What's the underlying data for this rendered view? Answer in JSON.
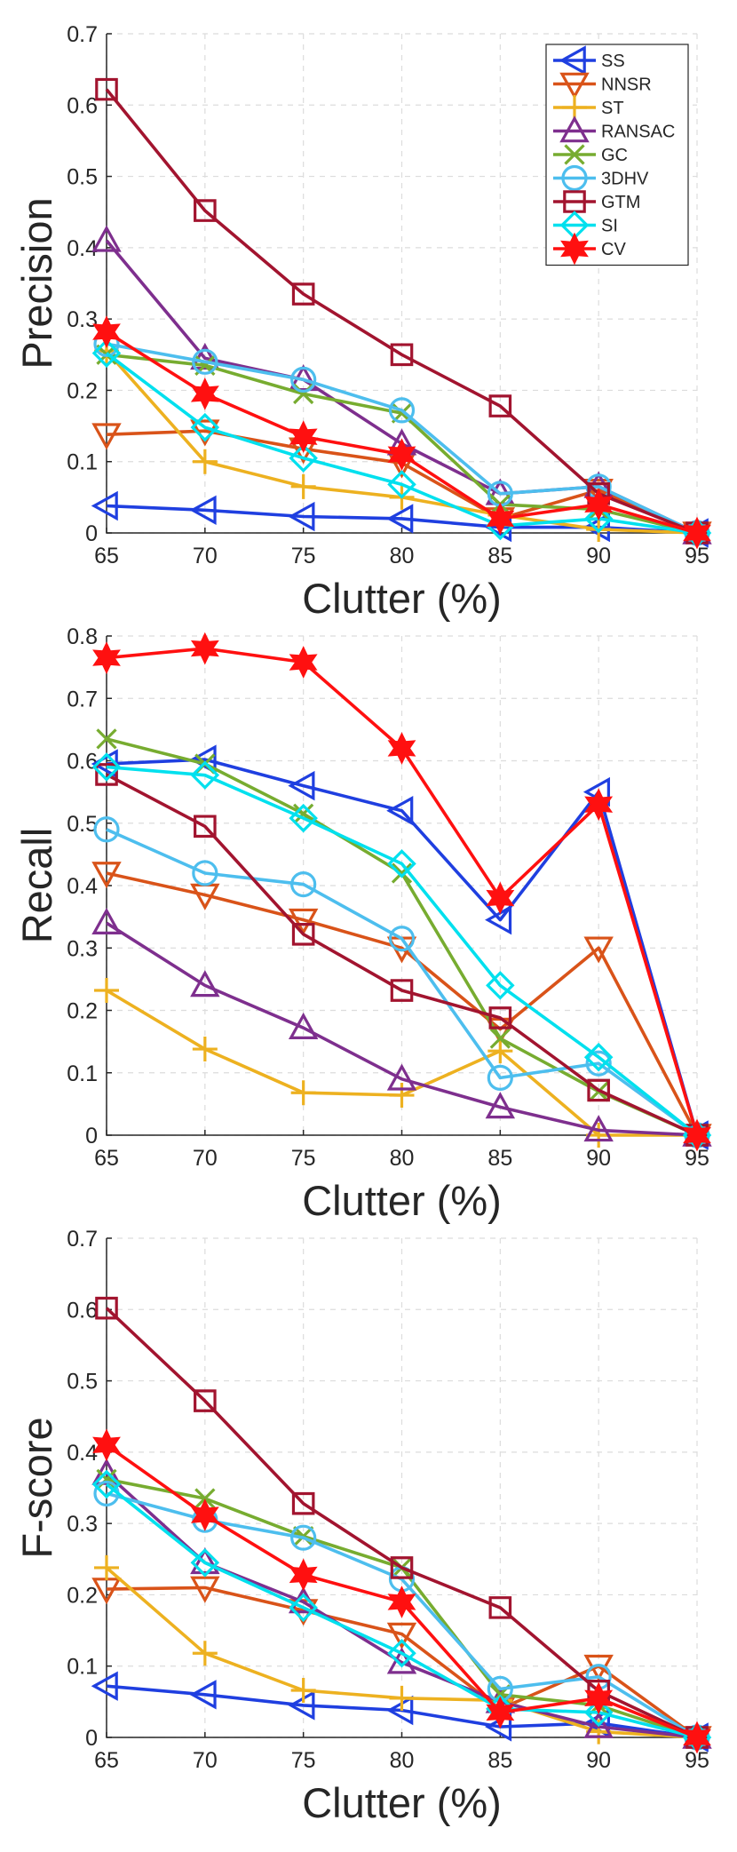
{
  "chart_data": [
    {
      "type": "line",
      "ylabel": "Precision",
      "xlabel": "Clutter (%)",
      "x": [
        65,
        70,
        75,
        80,
        85,
        90,
        95
      ],
      "xlim": [
        65,
        95
      ],
      "ylim": [
        0,
        0.7
      ],
      "xticks": [
        "65",
        "70",
        "75",
        "80",
        "85",
        "90",
        "95"
      ],
      "yticks": [
        "0",
        "0.1",
        "0.2",
        "0.3",
        "0.4",
        "0.5",
        "0.6",
        "0.7"
      ],
      "grid": true,
      "legend_position": "top-right",
      "series": [
        {
          "name": "SS",
          "values": [
            0.038,
            0.032,
            0.023,
            0.02,
            0.008,
            0.008,
            0.0
          ]
        },
        {
          "name": "NNSR",
          "values": [
            0.138,
            0.143,
            0.118,
            0.098,
            0.02,
            0.06,
            0.0
          ]
        },
        {
          "name": "ST",
          "values": [
            0.255,
            0.1,
            0.065,
            0.05,
            0.025,
            0.005,
            0.0
          ]
        },
        {
          "name": "RANSAC",
          "values": [
            0.41,
            0.245,
            0.215,
            0.125,
            0.055,
            0.065,
            0.0
          ]
        },
        {
          "name": "GC",
          "values": [
            0.25,
            0.235,
            0.195,
            0.168,
            0.04,
            0.033,
            0.0
          ]
        },
        {
          "name": "3DHV",
          "values": [
            0.265,
            0.24,
            0.215,
            0.172,
            0.055,
            0.065,
            0.0
          ]
        },
        {
          "name": "GTM",
          "values": [
            0.622,
            0.452,
            0.335,
            0.25,
            0.178,
            0.055,
            0.0
          ]
        },
        {
          "name": "SI",
          "values": [
            0.252,
            0.148,
            0.105,
            0.068,
            0.01,
            0.02,
            0.0
          ]
        },
        {
          "name": "CV",
          "values": [
            0.282,
            0.195,
            0.135,
            0.11,
            0.02,
            0.04,
            0.0
          ]
        }
      ]
    },
    {
      "type": "line",
      "ylabel": "Recall",
      "xlabel": "Clutter (%)",
      "x": [
        65,
        70,
        75,
        80,
        85,
        90,
        95
      ],
      "xlim": [
        65,
        95
      ],
      "ylim": [
        0,
        0.8
      ],
      "xticks": [
        "65",
        "70",
        "75",
        "80",
        "85",
        "90",
        "95"
      ],
      "yticks": [
        "0",
        "0.1",
        "0.2",
        "0.3",
        "0.4",
        "0.5",
        "0.6",
        "0.7",
        "0.8"
      ],
      "grid": true,
      "series": [
        {
          "name": "SS",
          "values": [
            0.595,
            0.602,
            0.56,
            0.52,
            0.345,
            0.55,
            0.0
          ]
        },
        {
          "name": "NNSR",
          "values": [
            0.42,
            0.385,
            0.345,
            0.3,
            0.17,
            0.3,
            0.0
          ]
        },
        {
          "name": "ST",
          "values": [
            0.232,
            0.138,
            0.068,
            0.064,
            0.135,
            0.0,
            0.0
          ]
        },
        {
          "name": "RANSAC",
          "values": [
            0.34,
            0.24,
            0.172,
            0.09,
            0.045,
            0.008,
            0.0
          ]
        },
        {
          "name": "GC",
          "values": [
            0.635,
            0.595,
            0.515,
            0.42,
            0.155,
            0.07,
            0.0
          ]
        },
        {
          "name": "3DHV",
          "values": [
            0.49,
            0.42,
            0.402,
            0.315,
            0.092,
            0.115,
            0.0
          ]
        },
        {
          "name": "GTM",
          "values": [
            0.578,
            0.495,
            0.322,
            0.232,
            0.188,
            0.072,
            0.0
          ]
        },
        {
          "name": "SI",
          "values": [
            0.59,
            0.577,
            0.508,
            0.435,
            0.24,
            0.125,
            0.0
          ]
        },
        {
          "name": "CV",
          "values": [
            0.765,
            0.78,
            0.758,
            0.62,
            0.38,
            0.53,
            0.0
          ]
        }
      ]
    },
    {
      "type": "line",
      "ylabel": "F-score",
      "xlabel": "Clutter (%)",
      "x": [
        65,
        70,
        75,
        80,
        85,
        90,
        95
      ],
      "xlim": [
        65,
        95
      ],
      "ylim": [
        0,
        0.7
      ],
      "xticks": [
        "65",
        "70",
        "75",
        "80",
        "85",
        "90",
        "95"
      ],
      "yticks": [
        "0",
        "0.1",
        "0.2",
        "0.3",
        "0.4",
        "0.5",
        "0.6",
        "0.7"
      ],
      "grid": true,
      "series": [
        {
          "name": "SS",
          "values": [
            0.072,
            0.06,
            0.045,
            0.038,
            0.015,
            0.02,
            0.0
          ]
        },
        {
          "name": "NNSR",
          "values": [
            0.208,
            0.21,
            0.178,
            0.145,
            0.04,
            0.1,
            0.0
          ]
        },
        {
          "name": "ST",
          "values": [
            0.238,
            0.118,
            0.066,
            0.055,
            0.052,
            0.008,
            0.0
          ]
        },
        {
          "name": "RANSAC",
          "values": [
            0.37,
            0.245,
            0.19,
            0.105,
            0.05,
            0.015,
            0.0
          ]
        },
        {
          "name": "GC",
          "values": [
            0.362,
            0.335,
            0.282,
            0.238,
            0.06,
            0.045,
            0.0
          ]
        },
        {
          "name": "3DHV",
          "values": [
            0.342,
            0.305,
            0.28,
            0.222,
            0.068,
            0.085,
            0.0
          ]
        },
        {
          "name": "GTM",
          "values": [
            0.602,
            0.472,
            0.328,
            0.238,
            0.182,
            0.065,
            0.0
          ]
        },
        {
          "name": "SI",
          "values": [
            0.355,
            0.245,
            0.182,
            0.118,
            0.04,
            0.035,
            0.0
          ]
        },
        {
          "name": "CV",
          "values": [
            0.41,
            0.312,
            0.228,
            0.19,
            0.035,
            0.055,
            0.0
          ]
        }
      ]
    }
  ],
  "styles": {
    "SS": {
      "color": "#1f3fe0",
      "marker": "triangle-left"
    },
    "NNSR": {
      "color": "#d95319",
      "marker": "triangle-down"
    },
    "ST": {
      "color": "#edb120",
      "marker": "plus"
    },
    "RANSAC": {
      "color": "#7e2f8e",
      "marker": "triangle-up"
    },
    "GC": {
      "color": "#77ac30",
      "marker": "x"
    },
    "3DHV": {
      "color": "#4dbeee",
      "marker": "circle"
    },
    "GTM": {
      "color": "#a2142f",
      "marker": "square"
    },
    "SI": {
      "color": "#00e0ee",
      "marker": "diamond"
    },
    "CV": {
      "color": "#ff1010",
      "marker": "hexagram"
    }
  }
}
